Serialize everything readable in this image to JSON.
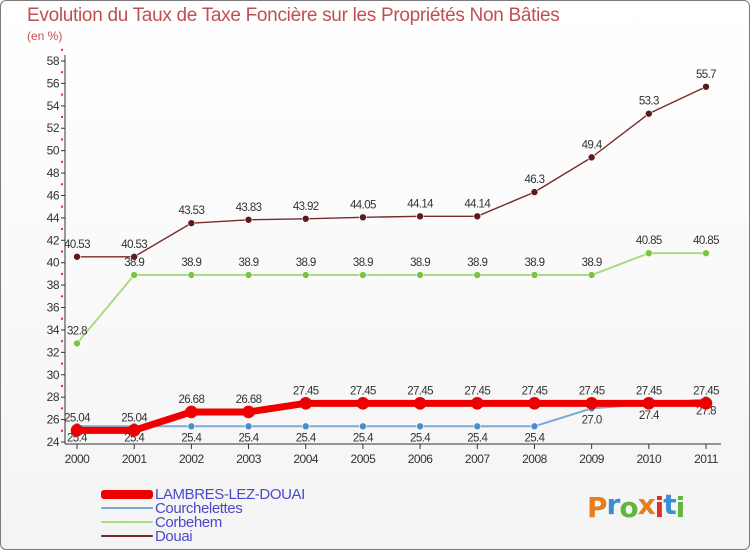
{
  "title": "Evolution du Taux de Taxe Foncière sur les Propriétés Non Bâties",
  "subtitle": "(en %)",
  "logo": {
    "text": "Proxiti",
    "colors": [
      "#e87d1e",
      "#3a8ed6",
      "#5fb63a",
      "#e87d1e",
      "#d8332a",
      "#3a8ed6",
      "#5fb63a"
    ]
  },
  "chart_data": {
    "type": "line",
    "title": "Evolution du Taux de Taxe Foncière sur les Propriétés Non Bâties",
    "ylabel": "(en %)",
    "xlabel": "",
    "categories": [
      "2000",
      "2001",
      "2002",
      "2003",
      "2004",
      "2005",
      "2006",
      "2007",
      "2008",
      "2009",
      "2010",
      "2011"
    ],
    "ylim": [
      24,
      58
    ],
    "yticks": [
      24,
      26,
      28,
      30,
      32,
      34,
      36,
      38,
      40,
      42,
      44,
      46,
      48,
      50,
      52,
      54,
      56,
      58
    ],
    "grid": false,
    "legend": "bottom-left",
    "series": [
      {
        "name": "Douai",
        "color": "#7a2a2a",
        "marker": "#5c1a1a",
        "width": 1.4,
        "label_pos": "above",
        "values": [
          40.53,
          40.53,
          43.53,
          43.83,
          43.92,
          44.05,
          44.14,
          44.14,
          46.3,
          49.4,
          53.3,
          55.7
        ],
        "labels": [
          "40.53",
          "40.53",
          "43.53",
          "43.83",
          "43.92",
          "44.05",
          "44.14",
          "44.14",
          "46.3",
          "49.4",
          "53.3",
          "55.7"
        ]
      },
      {
        "name": "Corbehem",
        "color": "#a8dc80",
        "marker": "#7bc443",
        "width": 2,
        "label_pos": "above",
        "values": [
          32.8,
          38.9,
          38.9,
          38.9,
          38.9,
          38.9,
          38.9,
          38.9,
          38.9,
          38.9,
          40.85,
          40.85
        ],
        "labels": [
          "32.8",
          "38.9",
          "38.9",
          "38.9",
          "38.9",
          "38.9",
          "38.9",
          "38.9",
          "38.9",
          "38.9",
          "40.85",
          "40.85"
        ]
      },
      {
        "name": "Courchelettes",
        "color": "#7eaad2",
        "marker": "#4a8cd0",
        "width": 2,
        "label_pos": "below",
        "values": [
          25.4,
          25.4,
          25.4,
          25.4,
          25.4,
          25.4,
          25.4,
          25.4,
          25.4,
          27.0,
          27.4,
          27.8
        ],
        "labels": [
          "25.4",
          "25.4",
          "25.4",
          "25.4",
          "25.4",
          "25.4",
          "25.4",
          "25.4",
          "25.4",
          "27.0",
          "27.4",
          "27.8"
        ]
      },
      {
        "name": "LAMBRES-LEZ-DOUAI",
        "color": "#ee0000",
        "marker": "#ee0000",
        "width": 7,
        "label_pos": "above",
        "values": [
          25.04,
          25.04,
          26.68,
          26.68,
          27.45,
          27.45,
          27.45,
          27.45,
          27.45,
          27.45,
          27.45,
          27.45
        ],
        "labels": [
          "25.04",
          "25.04",
          "26.68",
          "26.68",
          "27.45",
          "27.45",
          "27.45",
          "27.45",
          "27.45",
          "27.45",
          "27.45",
          "27.45"
        ]
      }
    ],
    "legend_order": [
      "LAMBRES-LEZ-DOUAI",
      "Courchelettes",
      "Corbehem",
      "Douai"
    ]
  }
}
